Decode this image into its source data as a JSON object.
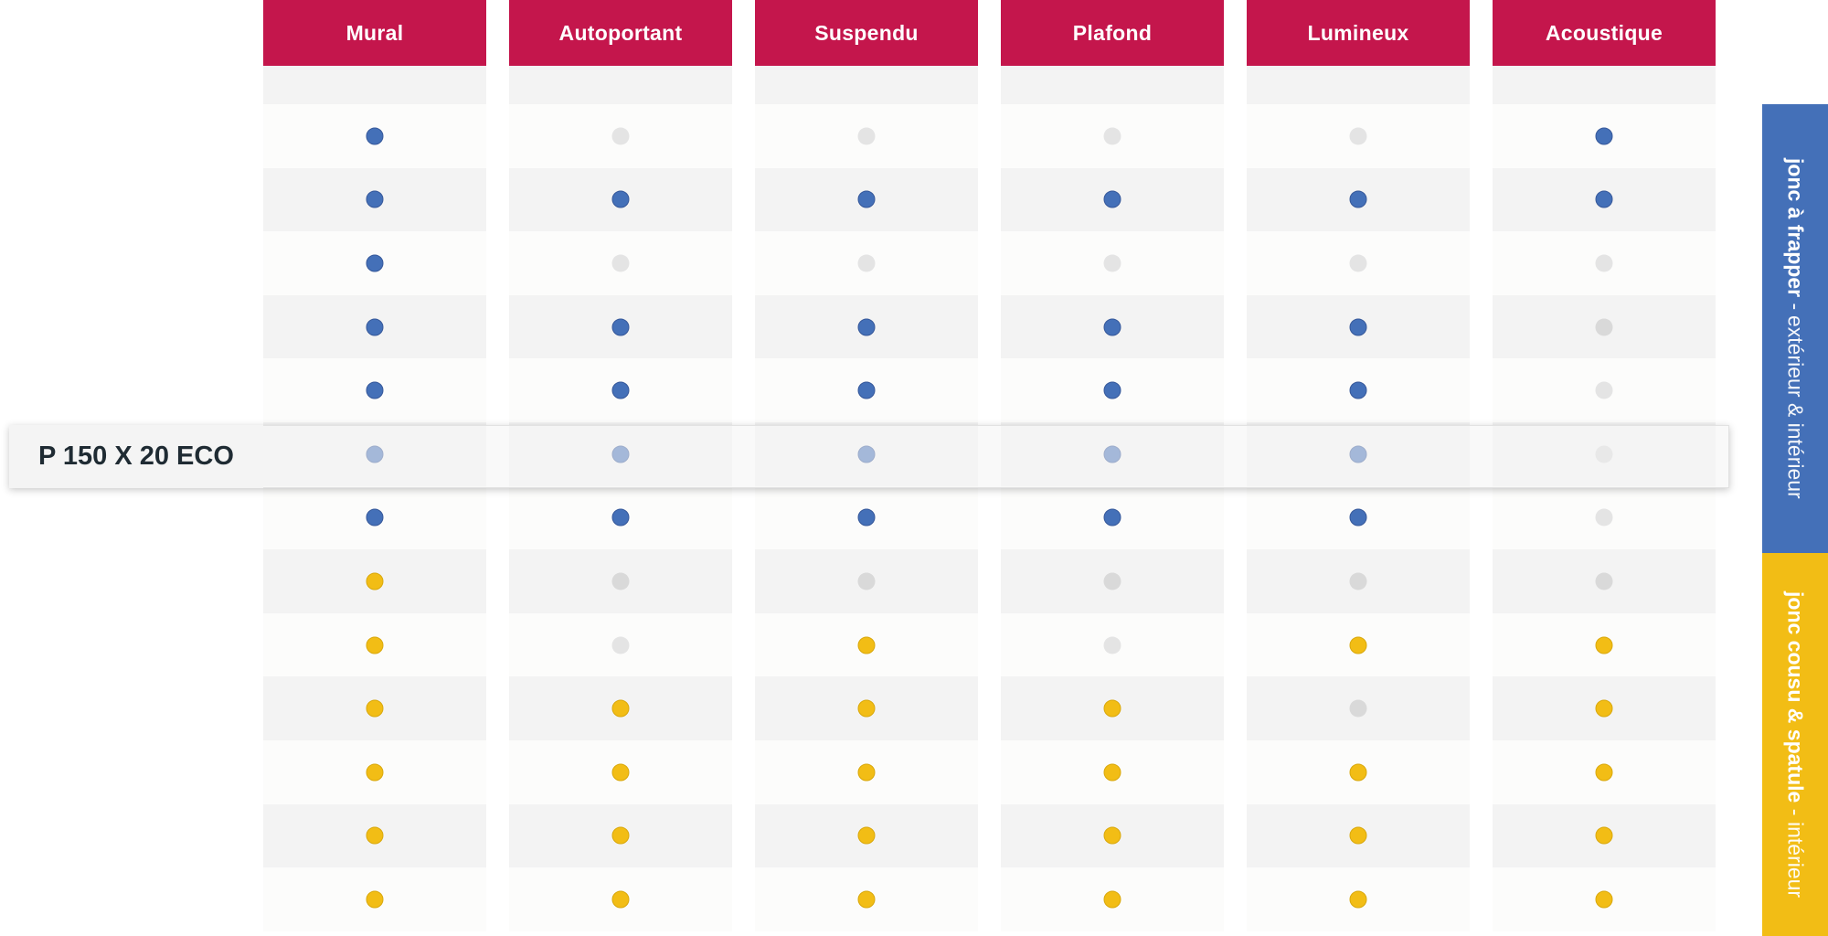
{
  "columns": [
    "Mural",
    "Autoportant",
    "Suspendu",
    "Plafond",
    "Lumineux",
    "Acoustique"
  ],
  "highlighted_row_label": "P 150 X 20 ECO",
  "groups": [
    {
      "title": "jonc à frapper",
      "separator": " - ",
      "subtitle": "extérieur & intérieur",
      "color": "#4470b8"
    },
    {
      "title": "jonc cousu & spatule",
      "separator": " - ",
      "subtitle": "intérieur",
      "color": "#f2bd15"
    }
  ],
  "legend_colors": {
    "header": "#c4164c",
    "blue": "#4470b8",
    "yellow": "#f2bd15",
    "unavailable": "#e4e4e4"
  },
  "rows": [
    [
      "blue",
      "grey",
      "grey",
      "grey",
      "grey",
      "blue"
    ],
    [
      "blue",
      "blue",
      "blue",
      "blue",
      "blue",
      "blue"
    ],
    [
      "blue",
      "grey",
      "grey",
      "grey",
      "grey",
      "grey"
    ],
    [
      "blue",
      "blue",
      "blue",
      "blue",
      "blue",
      "grey2"
    ],
    [
      "blue",
      "blue",
      "blue",
      "blue",
      "blue",
      "grey"
    ],
    [
      "blue",
      "blue",
      "blue",
      "blue",
      "blue",
      "grey2"
    ],
    [
      "blue",
      "blue",
      "blue",
      "blue",
      "blue",
      "grey"
    ],
    [
      "yellow",
      "grey2",
      "grey2",
      "grey2",
      "grey2",
      "grey2"
    ],
    [
      "yellow",
      "grey",
      "yellow",
      "grey",
      "yellow",
      "yellow"
    ],
    [
      "yellow",
      "yellow",
      "yellow",
      "yellow",
      "grey2",
      "yellow"
    ],
    [
      "yellow",
      "yellow",
      "yellow",
      "yellow",
      "yellow",
      "yellow"
    ],
    [
      "yellow",
      "yellow",
      "yellow",
      "yellow",
      "yellow",
      "yellow"
    ],
    [
      "yellow",
      "yellow",
      "yellow",
      "yellow",
      "yellow",
      "yellow"
    ]
  ]
}
